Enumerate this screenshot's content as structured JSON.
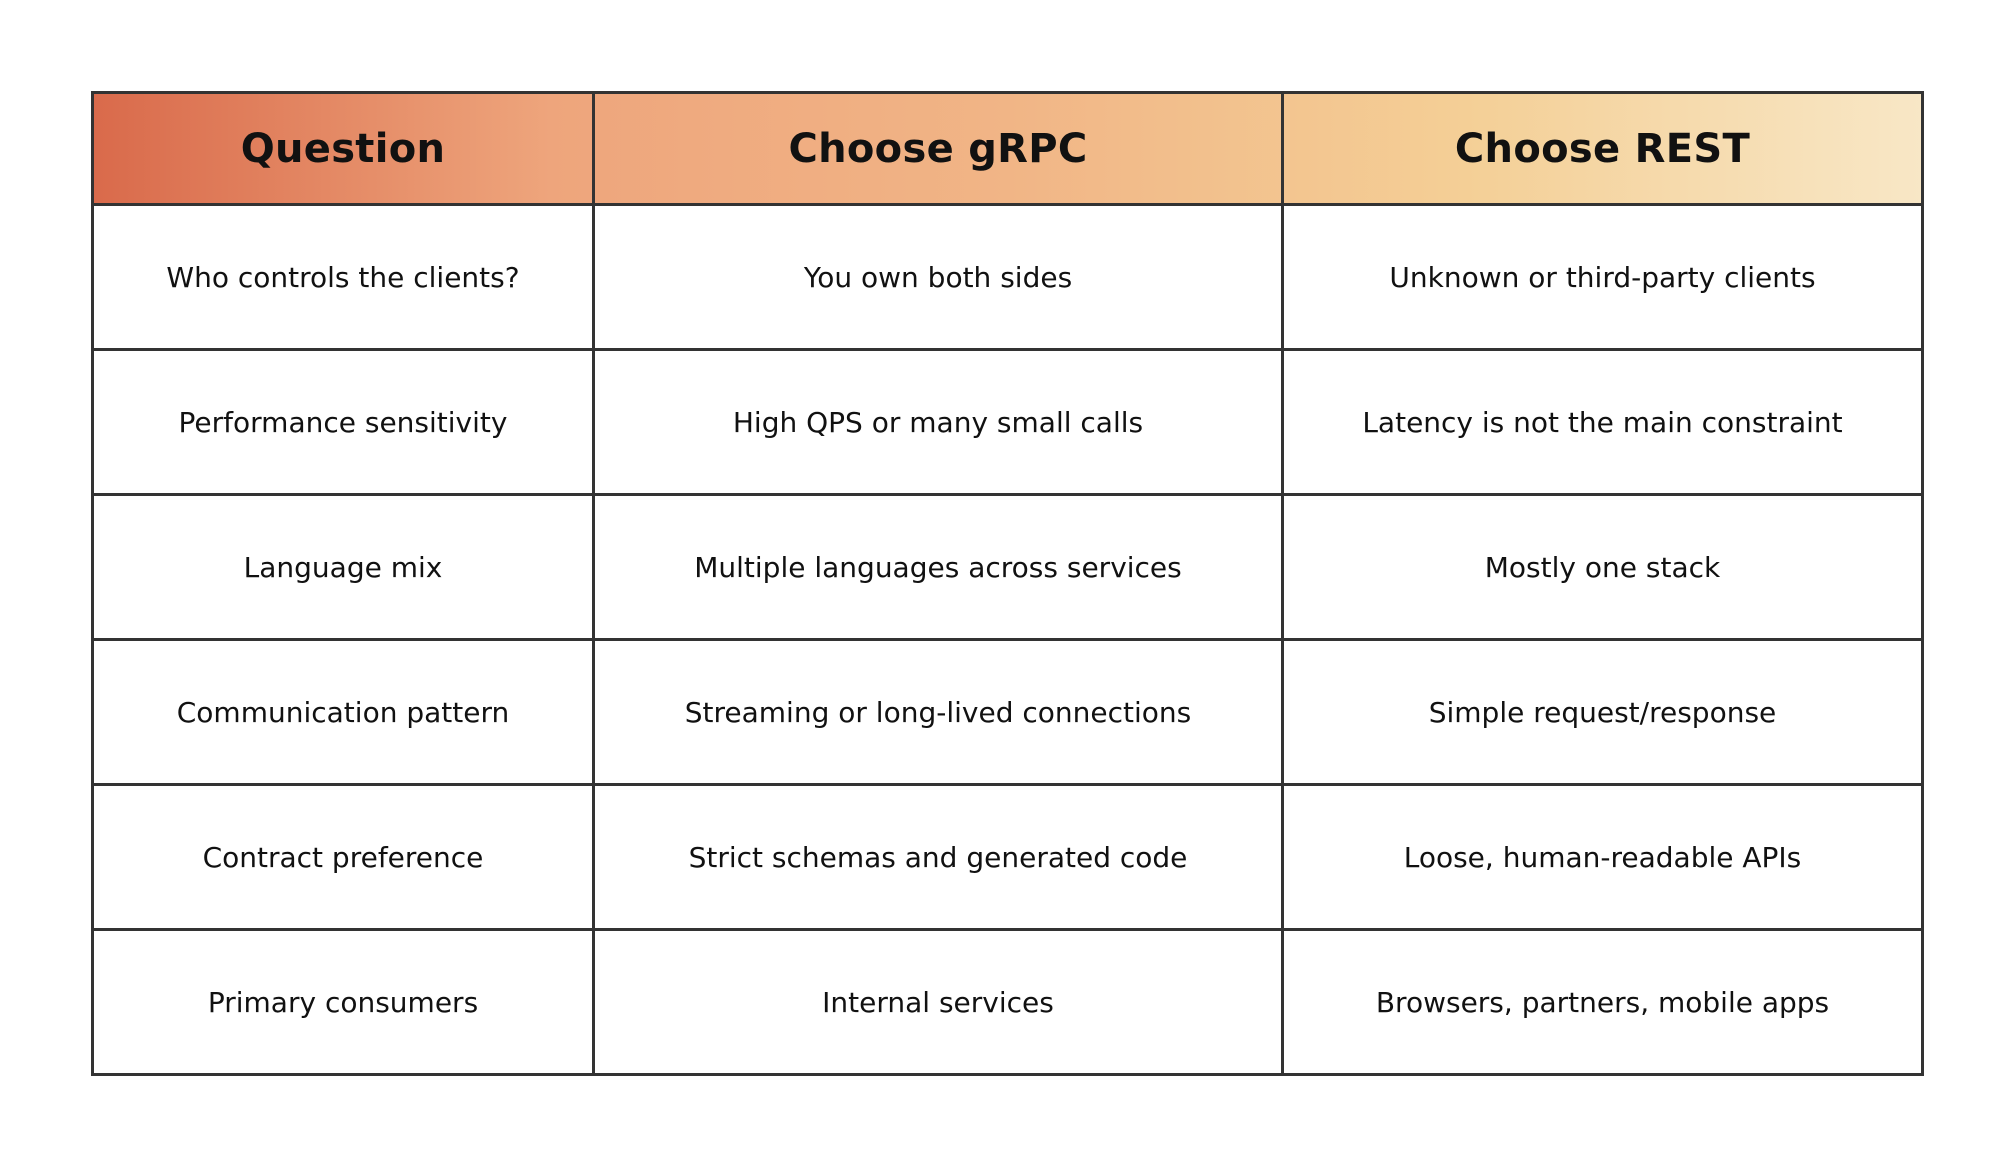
{
  "table": {
    "headers": [
      "Question",
      "Choose gRPC",
      "Choose REST"
    ],
    "rows": [
      [
        "Who controls the clients?",
        "You own both sides",
        "Unknown or third-party clients"
      ],
      [
        "Performance sensitivity",
        "High QPS or many small calls",
        "Latency is not the main constraint"
      ],
      [
        "Language mix",
        "Multiple languages across services",
        "Mostly one stack"
      ],
      [
        "Communication pattern",
        "Streaming or long-lived connections",
        "Simple request/response"
      ],
      [
        "Contract preference",
        "Strict schemas and generated code",
        "Loose, human-readable APIs"
      ],
      [
        "Primary consumers",
        "Internal services",
        "Browsers, partners, mobile apps"
      ]
    ]
  },
  "colors": {
    "header_gradient_start": "#d96a4b",
    "header_gradient_end": "#f8e7c6",
    "border": "#333333",
    "text": "#111111",
    "background": "#ffffff"
  }
}
